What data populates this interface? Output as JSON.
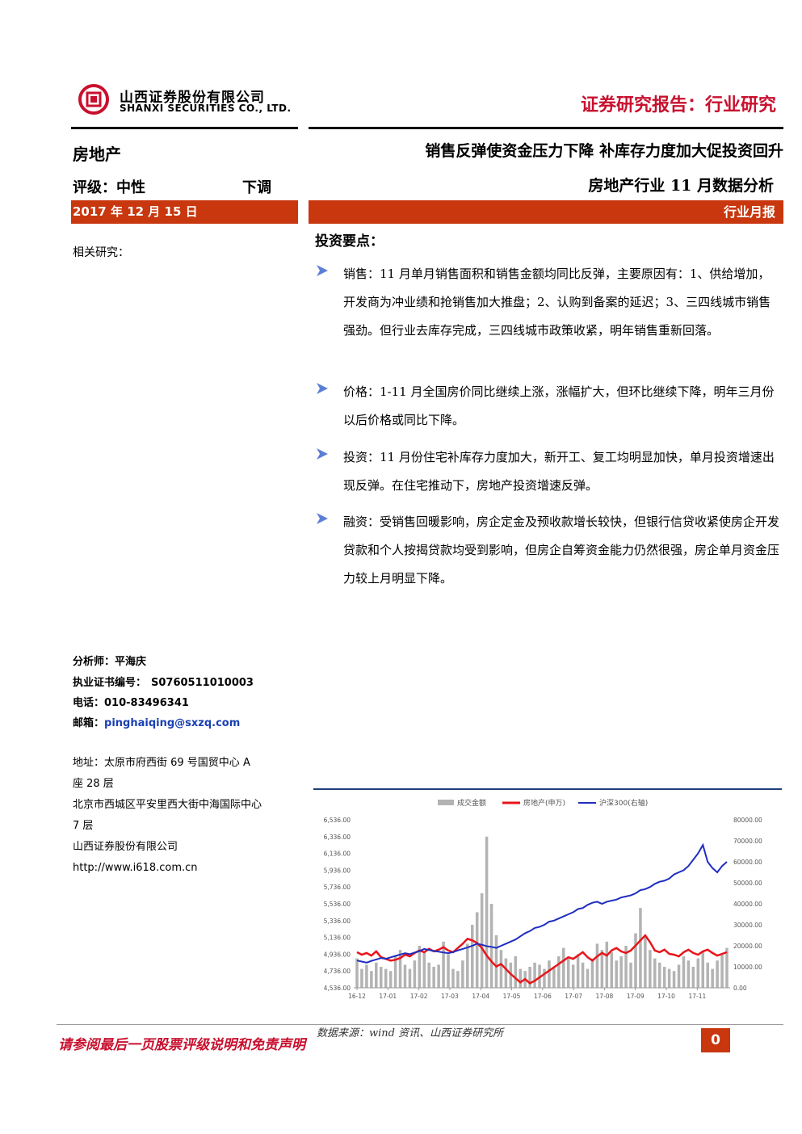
{
  "header": {
    "company_cn": "山西证券股份有限公司",
    "company_en": "SHANXI SECURITIES CO., LTD.",
    "report_type": "证券研究报告：行业研究",
    "brand_color": "#c8102e"
  },
  "sidebar": {
    "sector": "房地产",
    "rating_label": "评级：中性",
    "rating_change": "下调",
    "date": "2017 年 12 月 15 日",
    "related_label": "相关研究：",
    "analyst": {
      "label": "分析师：",
      "name": "平海庆"
    },
    "license": {
      "label": "执业证书编号：",
      "value": "S0760511010003"
    },
    "phone": {
      "label": "电话：",
      "value": "010-83496341"
    },
    "email": {
      "label": "邮箱：",
      "value": "pinghaiqing@sxzq.com"
    },
    "address_lines": [
      "地址：太原市府西街 69 号国贸中心 A",
      "座 28 层",
      "北京市西城区平安里西大街中海国际中心",
      "7 层",
      "山西证券股份有限公司",
      "http://www.i618.com.cn"
    ]
  },
  "main": {
    "title": "销售反弹使资金压力下降 补库存力度加大促投资回升",
    "subtitle": "房地产行业 11 月数据分析",
    "report_kind": "行业月报",
    "key_points_heading": "投资要点：",
    "bullets": [
      "销售：11 月单月销售面积和销售金额均同比反弹，主要原因有：1、供给增加，开发商为冲业绩和抢销售加大推盘；2、认购到备案的延迟；3、三四线城市销售强劲。但行业去库存完成，三四线城市政策收紧，明年销售重新回落。",
      "价格：1-11 月全国房价同比继续上涨，涨幅扩大，但环比继续下降，明年三月份以后价格或同比下降。",
      "投资：11 月份住宅补库存力度加大，新开工、复工均明显加快，单月投资增速出现反弹。在住宅推动下，房地产投资增速反弹。",
      "融资：受销售回暖影响，房企定金及预收款增长较快，但银行信贷收紧使房企开发贷款和个人按揭贷款均受到影响，但房企自筹资金能力仍然很强，房企单月资金压力较上月明显下降。"
    ]
  },
  "chart_data": {
    "type": "line",
    "x_ticks": [
      "16-12",
      "17-01",
      "17-02",
      "17-03",
      "17-04",
      "17-05",
      "17-06",
      "17-07",
      "17-08",
      "17-09",
      "17-10",
      "17-11"
    ],
    "y_left_ticks": [
      "6,536.00",
      "6,336.00",
      "6,136.00",
      "5,936.00",
      "5,736.00",
      "5,536.00",
      "5,336.00",
      "5,136.00",
      "4,936.00",
      "4,736.00",
      "4,536.00"
    ],
    "y_right_ticks": [
      "80000.00",
      "70000.00",
      "60000.00",
      "50000.00",
      "40000.00",
      "30000.00",
      "20000.00",
      "10000.00",
      "0.00"
    ],
    "legend": [
      "成交金额",
      "房地产(申万)",
      "沪深300(右轴)"
    ],
    "colors": {
      "volume": "#b3b3b3",
      "property": "#e8141a",
      "csi300": "#1f2dbf"
    },
    "volume_y_right": [
      14000,
      9000,
      11000,
      8000,
      12000,
      10000,
      9000,
      8000,
      15000,
      18000,
      11000,
      9000,
      13000,
      20000,
      17000,
      12000,
      10000,
      11000,
      22000,
      16000,
      9000,
      8000,
      13000,
      21000,
      30000,
      36000,
      45000,
      72000,
      40000,
      25000,
      18000,
      14000,
      12000,
      15000,
      9000,
      8000,
      10000,
      12000,
      11000,
      9000,
      13000,
      10000,
      15000,
      19000,
      14000,
      11000,
      16000,
      12000,
      9000,
      14000,
      21000,
      18000,
      22000,
      17000,
      13000,
      15000,
      20000,
      12000,
      26000,
      38000,
      24000,
      18000,
      14000,
      12000,
      10000,
      9000,
      8000,
      11000,
      15000,
      13000,
      10000,
      14000,
      17000,
      12000,
      9000,
      13000,
      16000,
      19000
    ],
    "property_y_left": [
      4960,
      4930,
      4950,
      4920,
      4970,
      4900,
      4880,
      4860,
      4870,
      4890,
      4930,
      4910,
      4950,
      4980,
      4960,
      5000,
      4970,
      4990,
      5020,
      4980,
      4960,
      5010,
      5060,
      5120,
      5100,
      5070,
      5010,
      4920,
      4850,
      4790,
      4820,
      4760,
      4700,
      4650,
      4600,
      4640,
      4590,
      4620,
      4660,
      4700,
      4740,
      4780,
      4820,
      4860,
      4900,
      4880,
      4920,
      4960,
      4900,
      4860,
      4910,
      4950,
      4920,
      4980,
      5010,
      4970,
      4950,
      4980,
      5040,
      5100,
      5160,
      5080,
      4980,
      4960,
      4990,
      4940,
      4930,
      4910,
      4960,
      4990,
      4950,
      4930,
      4970,
      4990,
      4950,
      4920,
      4940,
      4960
    ],
    "csi300_y_right": [
      13000,
      12500,
      12000,
      12800,
      13500,
      14200,
      13800,
      14500,
      15200,
      15800,
      16500,
      16000,
      16800,
      17500,
      18500,
      18000,
      17500,
      17200,
      16800,
      16500,
      17000,
      17800,
      18500,
      19200,
      20000,
      21000,
      20500,
      19800,
      19500,
      19000,
      20000,
      21000,
      22000,
      23000,
      24500,
      26000,
      27000,
      28500,
      29000,
      30000,
      31500,
      32000,
      33000,
      34000,
      35000,
      36000,
      37500,
      38000,
      39500,
      40500,
      41000,
      40000,
      41000,
      41500,
      42000,
      43000,
      43500,
      44000,
      45000,
      46500,
      47000,
      48000,
      49500,
      50500,
      51000,
      52000,
      54000,
      55000,
      56000,
      58000,
      61000,
      64000,
      68000,
      60000,
      57000,
      55000,
      58000,
      60000
    ],
    "ylim_left": [
      4536,
      6536
    ],
    "ylim_right": [
      0,
      80000
    ],
    "source": "数据来源：wind 资讯、山西证券研究所"
  },
  "footer": {
    "disclaimer": "请参阅最后一页股票评级说明和免责声明",
    "page_number": "0"
  }
}
